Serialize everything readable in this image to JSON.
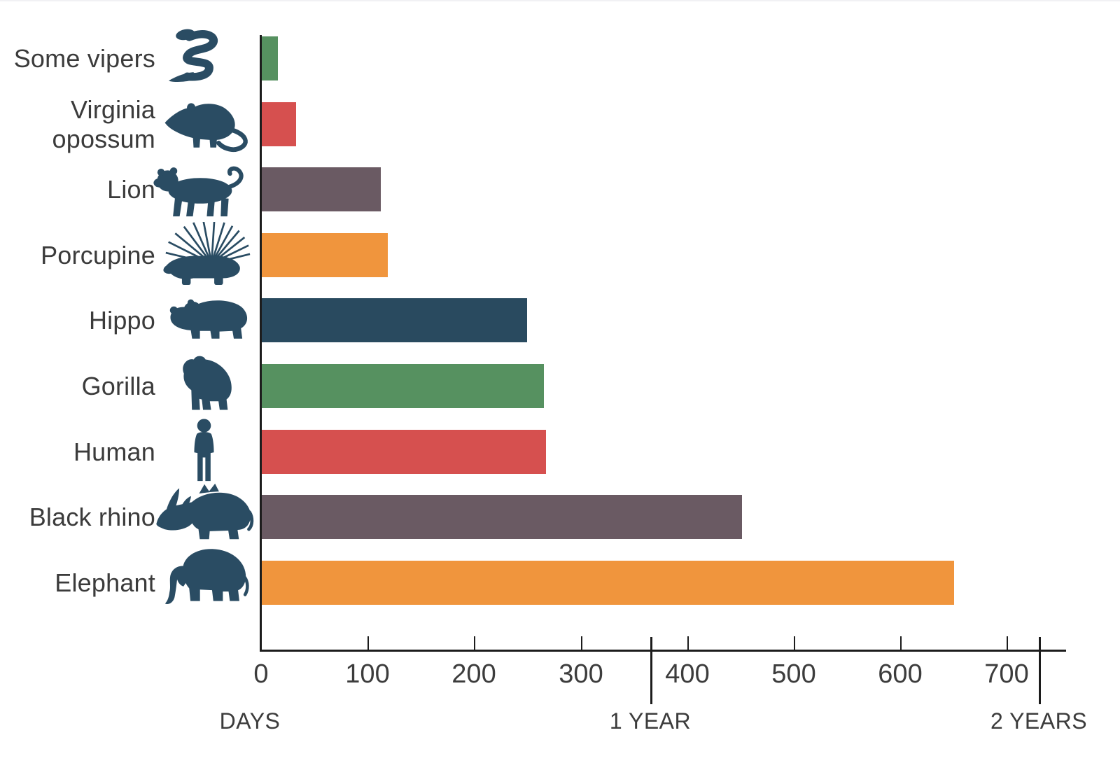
{
  "page": {
    "background": "#ffffff"
  },
  "chart_data": {
    "type": "bar",
    "orientation": "horizontal",
    "title": "",
    "categories": [
      "Some vipers",
      "Virginia opossum",
      "Lion",
      "Porcupine",
      "Hippo",
      "Gorilla",
      "Human",
      "Black rhino",
      "Elephant"
    ],
    "values": [
      15,
      32,
      112,
      118,
      249,
      265,
      267,
      451,
      650
    ],
    "unit": "days",
    "icons": [
      "snake-icon",
      "opossum-icon",
      "lion-icon",
      "porcupine-icon",
      "hippo-icon",
      "gorilla-icon",
      "human-icon",
      "rhino-icon",
      "elephant-icon"
    ],
    "bar_colors": [
      "#569160",
      "#d6504f",
      "#6a5a63",
      "#f0953d",
      "#294a5f",
      "#569160",
      "#d6504f",
      "#6a5a63",
      "#f0953d"
    ],
    "icon_color": "#2a4c63",
    "axis_color": "#1c1c1c",
    "text_color": "#3c3c3c",
    "xlabel": "DAYS",
    "x_ticks": [
      0,
      100,
      200,
      300,
      400,
      500,
      600,
      700
    ],
    "x_max_days": 755,
    "year_markers": [
      {
        "label": "1 YEAR",
        "days": 365
      },
      {
        "label": "2 YEARS",
        "days": 730
      }
    ],
    "grid": false,
    "legend": false
  }
}
